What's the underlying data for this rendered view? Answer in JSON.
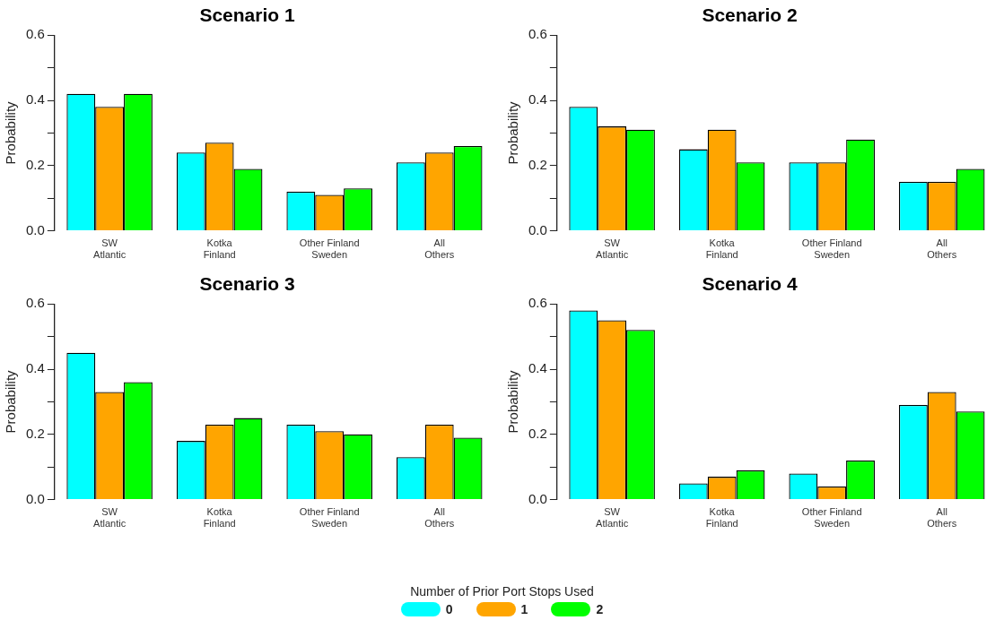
{
  "chart_data": [
    {
      "type": "bar",
      "title": "Scenario 1",
      "ylabel": "Probability",
      "categories": [
        "SW\nAtlantic",
        "Kotka\nFinland",
        "Other Finland\nSweden",
        "All\nOthers"
      ],
      "ylim": [
        0,
        0.6
      ],
      "yticks": [
        {
          "value": 0,
          "label": "0.0"
        },
        {
          "value": 0.1,
          "label": null
        },
        {
          "value": 0.2,
          "label": "0.2"
        },
        {
          "value": 0.3,
          "label": null
        },
        {
          "value": 0.4,
          "label": "0.4"
        },
        {
          "value": 0.5,
          "label": null
        },
        {
          "value": 0.6,
          "label": "0.6"
        }
      ],
      "grid": false,
      "legend": "bottom",
      "legend_title": "Number of Prior Port Stops Used",
      "series": [
        {
          "name": "0",
          "color": "#00ffff",
          "values": [
            0.42,
            0.24,
            0.12,
            0.21
          ]
        },
        {
          "name": "1",
          "color": "#ffa500",
          "values": [
            0.38,
            0.27,
            0.11,
            0.24
          ]
        },
        {
          "name": "2",
          "color": "#00ff00",
          "values": [
            0.42,
            0.19,
            0.13,
            0.26
          ]
        }
      ]
    },
    {
      "type": "bar",
      "title": "Scenario 2",
      "ylabel": "Probability",
      "categories": [
        "SW\nAtlantic",
        "Kotka\nFinland",
        "Other Finland\nSweden",
        "All\nOthers"
      ],
      "ylim": [
        0,
        0.6
      ],
      "yticks": [
        {
          "value": 0,
          "label": "0.0"
        },
        {
          "value": 0.1,
          "label": null
        },
        {
          "value": 0.2,
          "label": "0.2"
        },
        {
          "value": 0.3,
          "label": null
        },
        {
          "value": 0.4,
          "label": "0.4"
        },
        {
          "value": 0.5,
          "label": null
        },
        {
          "value": 0.6,
          "label": "0.6"
        }
      ],
      "grid": false,
      "series": [
        {
          "name": "0",
          "color": "#00ffff",
          "values": [
            0.38,
            0.25,
            0.21,
            0.15
          ]
        },
        {
          "name": "1",
          "color": "#ffa500",
          "values": [
            0.32,
            0.31,
            0.21,
            0.15
          ]
        },
        {
          "name": "2",
          "color": "#00ff00",
          "values": [
            0.31,
            0.21,
            0.28,
            0.19
          ]
        }
      ]
    },
    {
      "type": "bar",
      "title": "Scenario 3",
      "ylabel": "Probability",
      "categories": [
        "SW\nAtlantic",
        "Kotka\nFinland",
        "Other Finland\nSweden",
        "All\nOthers"
      ],
      "ylim": [
        0,
        0.6
      ],
      "yticks": [
        {
          "value": 0,
          "label": "0.0"
        },
        {
          "value": 0.1,
          "label": null
        },
        {
          "value": 0.2,
          "label": "0.2"
        },
        {
          "value": 0.3,
          "label": null
        },
        {
          "value": 0.4,
          "label": "0.4"
        },
        {
          "value": 0.5,
          "label": null
        },
        {
          "value": 0.6,
          "label": "0.6"
        }
      ],
      "grid": false,
      "series": [
        {
          "name": "0",
          "color": "#00ffff",
          "values": [
            0.45,
            0.18,
            0.23,
            0.13
          ]
        },
        {
          "name": "1",
          "color": "#ffa500",
          "values": [
            0.33,
            0.23,
            0.21,
            0.23
          ]
        },
        {
          "name": "2",
          "color": "#00ff00",
          "values": [
            0.36,
            0.25,
            0.2,
            0.19
          ]
        }
      ]
    },
    {
      "type": "bar",
      "title": "Scenario 4",
      "ylabel": "Probability",
      "categories": [
        "SW\nAtlantic",
        "Kotka\nFinland",
        "Other Finland\nSweden",
        "All\nOthers"
      ],
      "ylim": [
        0,
        0.6
      ],
      "yticks": [
        {
          "value": 0,
          "label": "0.0"
        },
        {
          "value": 0.1,
          "label": null
        },
        {
          "value": 0.2,
          "label": "0.2"
        },
        {
          "value": 0.3,
          "label": null
        },
        {
          "value": 0.4,
          "label": "0.4"
        },
        {
          "value": 0.5,
          "label": null
        },
        {
          "value": 0.6,
          "label": "0.6"
        }
      ],
      "grid": false,
      "series": [
        {
          "name": "0",
          "color": "#00ffff",
          "values": [
            0.58,
            0.05,
            0.08,
            0.29
          ]
        },
        {
          "name": "1",
          "color": "#ffa500",
          "values": [
            0.55,
            0.07,
            0.04,
            0.33
          ]
        },
        {
          "name": "2",
          "color": "#00ff00",
          "values": [
            0.52,
            0.09,
            0.12,
            0.27
          ]
        }
      ]
    }
  ]
}
